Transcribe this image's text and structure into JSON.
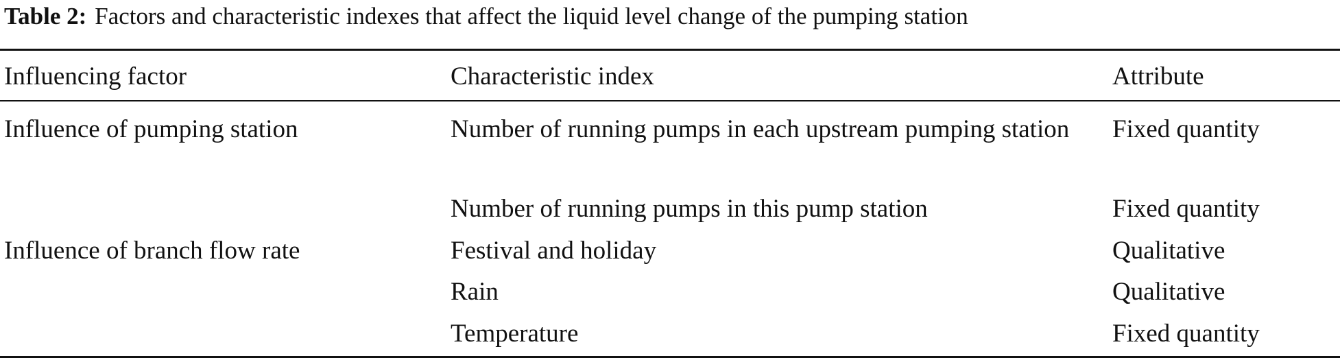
{
  "table": {
    "label": "Table 2:",
    "title": "Factors and characteristic indexes that affect the liquid level change of the pumping station",
    "header": [
      "Influencing factor",
      "Characteristic index",
      "Attribute"
    ],
    "rows": [
      {
        "factor": "Influence of pumping station",
        "index": "Number of running pumps in each upstream pumping station",
        "attribute": "Fixed quantity"
      },
      {
        "index": "Number of running pumps in this pump station",
        "attribute": "Fixed quantity"
      },
      {
        "factor": "Influence of branch flow rate",
        "index": "Festival and holiday",
        "attribute": "Qualitative"
      },
      {
        "index": "Rain",
        "attribute": "Qualitative"
      },
      {
        "index": "Temperature",
        "attribute": "Fixed quantity"
      }
    ]
  }
}
